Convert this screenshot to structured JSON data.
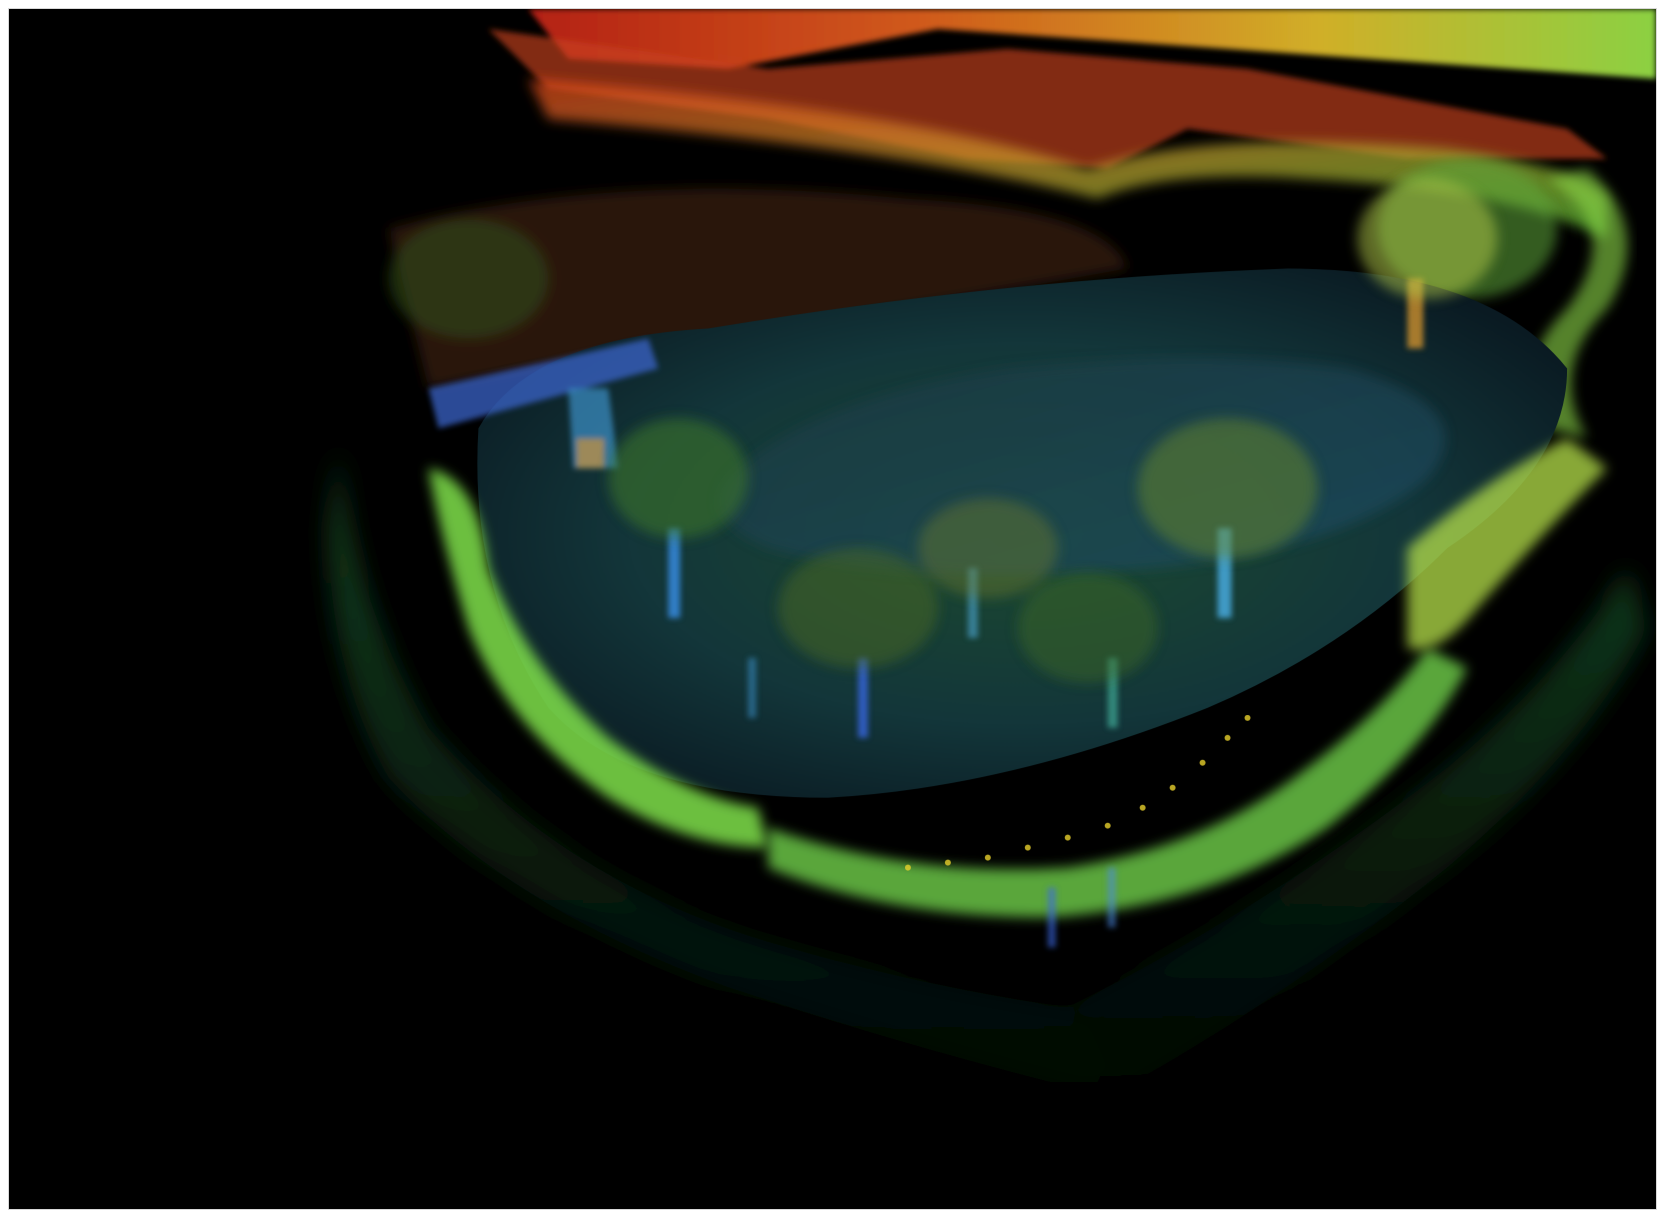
{
  "image": {
    "subject": "lidar-point-cloud-park",
    "colormap": [
      "#1d2bd6",
      "#2a8fd0",
      "#26d08a",
      "#9be84a",
      "#e8c22c",
      "#e8641c",
      "#c8241a"
    ],
    "background": "#000000",
    "frame_border": "#d8d8d8"
  }
}
